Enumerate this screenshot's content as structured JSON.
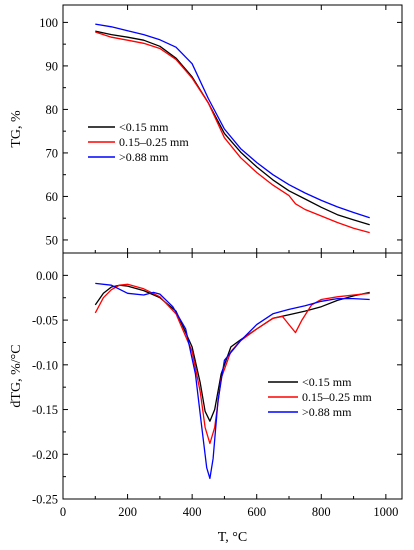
{
  "figure_type": "two stacked panels sharing the temperature axis",
  "chart_data": [
    {
      "type": "line",
      "panel": "top",
      "xlabel": "",
      "ylabel": "TG, %",
      "xlim": [
        0,
        1050
      ],
      "ylim": [
        47,
        104
      ],
      "yticks": [
        50,
        60,
        70,
        80,
        90,
        100
      ],
      "grid": false,
      "legend": {
        "placement": "center-left"
      },
      "series": [
        {
          "name": "<0.15 mm",
          "color": "#000000",
          "points": [
            [
              100,
              98.0
            ],
            [
              150,
              97.2
            ],
            [
              200,
              96.6
            ],
            [
              250,
              95.9
            ],
            [
              300,
              94.5
            ],
            [
              350,
              91.8
            ],
            [
              400,
              87.5
            ],
            [
              450,
              81.5
            ],
            [
              500,
              74.5
            ],
            [
              550,
              70.2
            ],
            [
              600,
              66.8
            ],
            [
              650,
              63.8
            ],
            [
              700,
              61.3
            ],
            [
              750,
              59.4
            ],
            [
              800,
              57.5
            ],
            [
              850,
              55.8
            ],
            [
              900,
              54.6
            ],
            [
              950,
              53.5
            ]
          ]
        },
        {
          "name": "0.15–0.25 mm",
          "color": "#ff0000",
          "points": [
            [
              100,
              97.8
            ],
            [
              150,
              96.6
            ],
            [
              200,
              95.9
            ],
            [
              250,
              95.2
            ],
            [
              300,
              94.0
            ],
            [
              350,
              91.5
            ],
            [
              400,
              87.2
            ],
            [
              450,
              81.5
            ],
            [
              500,
              73.5
            ],
            [
              550,
              68.9
            ],
            [
              600,
              65.5
            ],
            [
              650,
              62.6
            ],
            [
              700,
              60.2
            ],
            [
              720,
              58.3
            ],
            [
              750,
              57.0
            ],
            [
              800,
              55.5
            ],
            [
              850,
              54.0
            ],
            [
              900,
              52.7
            ],
            [
              950,
              51.7
            ]
          ]
        },
        {
          "name": ">0.88 mm",
          "color": "#0000ff",
          "points": [
            [
              100,
              99.6
            ],
            [
              150,
              99.0
            ],
            [
              200,
              98.1
            ],
            [
              250,
              97.2
            ],
            [
              300,
              96.0
            ],
            [
              350,
              94.3
            ],
            [
              400,
              90.5
            ],
            [
              450,
              82.5
            ],
            [
              500,
              75.5
            ],
            [
              550,
              71.0
            ],
            [
              600,
              67.8
            ],
            [
              650,
              65.0
            ],
            [
              700,
              62.7
            ],
            [
              750,
              60.8
            ],
            [
              800,
              59.1
            ],
            [
              850,
              57.6
            ],
            [
              900,
              56.3
            ],
            [
              950,
              55.1
            ]
          ]
        }
      ]
    },
    {
      "type": "line",
      "panel": "bottom",
      "xlabel": "T, °C",
      "ylabel": "dTG, %/°C",
      "xlim": [
        0,
        1050
      ],
      "ylim": [
        -0.25,
        0.025
      ],
      "xticks": [
        0,
        200,
        400,
        600,
        800,
        1000
      ],
      "yticks": [
        0.0,
        -0.05,
        -0.1,
        -0.15,
        -0.2,
        -0.25
      ],
      "ytick_labels": [
        "0.00",
        "-0.05",
        "-0.10",
        "-0.15",
        "-0.20",
        "-0.25"
      ],
      "grid": false,
      "legend": {
        "placement": "lower-right"
      },
      "series": [
        {
          "name": "<0.15 mm",
          "color": "#000000",
          "points": [
            [
              100,
              -0.033
            ],
            [
              125,
              -0.02
            ],
            [
              150,
              -0.013
            ],
            [
              175,
              -0.011
            ],
            [
              200,
              -0.012
            ],
            [
              250,
              -0.017
            ],
            [
              300,
              -0.025
            ],
            [
              350,
              -0.04
            ],
            [
              400,
              -0.08
            ],
            [
              425,
              -0.12
            ],
            [
              440,
              -0.152
            ],
            [
              455,
              -0.163
            ],
            [
              470,
              -0.15
            ],
            [
              490,
              -0.11
            ],
            [
              520,
              -0.08
            ],
            [
              550,
              -0.072
            ],
            [
              600,
              -0.06
            ],
            [
              650,
              -0.048
            ],
            [
              700,
              -0.044
            ],
            [
              750,
              -0.04
            ],
            [
              800,
              -0.035
            ],
            [
              850,
              -0.028
            ],
            [
              900,
              -0.023
            ],
            [
              950,
              -0.019
            ]
          ]
        },
        {
          "name": "0.15–0.25 mm",
          "color": "#ff0000",
          "points": [
            [
              100,
              -0.042
            ],
            [
              125,
              -0.025
            ],
            [
              150,
              -0.016
            ],
            [
              175,
              -0.011
            ],
            [
              200,
              -0.01
            ],
            [
              250,
              -0.015
            ],
            [
              300,
              -0.024
            ],
            [
              350,
              -0.043
            ],
            [
              400,
              -0.085
            ],
            [
              425,
              -0.13
            ],
            [
              440,
              -0.17
            ],
            [
              455,
              -0.188
            ],
            [
              470,
              -0.17
            ],
            [
              490,
              -0.115
            ],
            [
              520,
              -0.085
            ],
            [
              550,
              -0.073
            ],
            [
              600,
              -0.06
            ],
            [
              650,
              -0.048
            ],
            [
              680,
              -0.046
            ],
            [
              700,
              -0.055
            ],
            [
              720,
              -0.064
            ],
            [
              740,
              -0.05
            ],
            [
              770,
              -0.033
            ],
            [
              800,
              -0.027
            ],
            [
              850,
              -0.024
            ],
            [
              900,
              -0.022
            ],
            [
              950,
              -0.02
            ]
          ]
        },
        {
          "name": ">0.88 mm",
          "color": "#0000ff",
          "points": [
            [
              100,
              -0.009
            ],
            [
              150,
              -0.011
            ],
            [
              200,
              -0.02
            ],
            [
              250,
              -0.022
            ],
            [
              280,
              -0.019
            ],
            [
              300,
              -0.021
            ],
            [
              340,
              -0.035
            ],
            [
              380,
              -0.06
            ],
            [
              410,
              -0.11
            ],
            [
              430,
              -0.17
            ],
            [
              445,
              -0.215
            ],
            [
              455,
              -0.227
            ],
            [
              465,
              -0.205
            ],
            [
              480,
              -0.14
            ],
            [
              500,
              -0.095
            ],
            [
              550,
              -0.073
            ],
            [
              600,
              -0.055
            ],
            [
              650,
              -0.043
            ],
            [
              700,
              -0.038
            ],
            [
              750,
              -0.034
            ],
            [
              800,
              -0.029
            ],
            [
              850,
              -0.026
            ],
            [
              900,
              -0.026
            ],
            [
              950,
              -0.027
            ]
          ]
        }
      ]
    }
  ]
}
